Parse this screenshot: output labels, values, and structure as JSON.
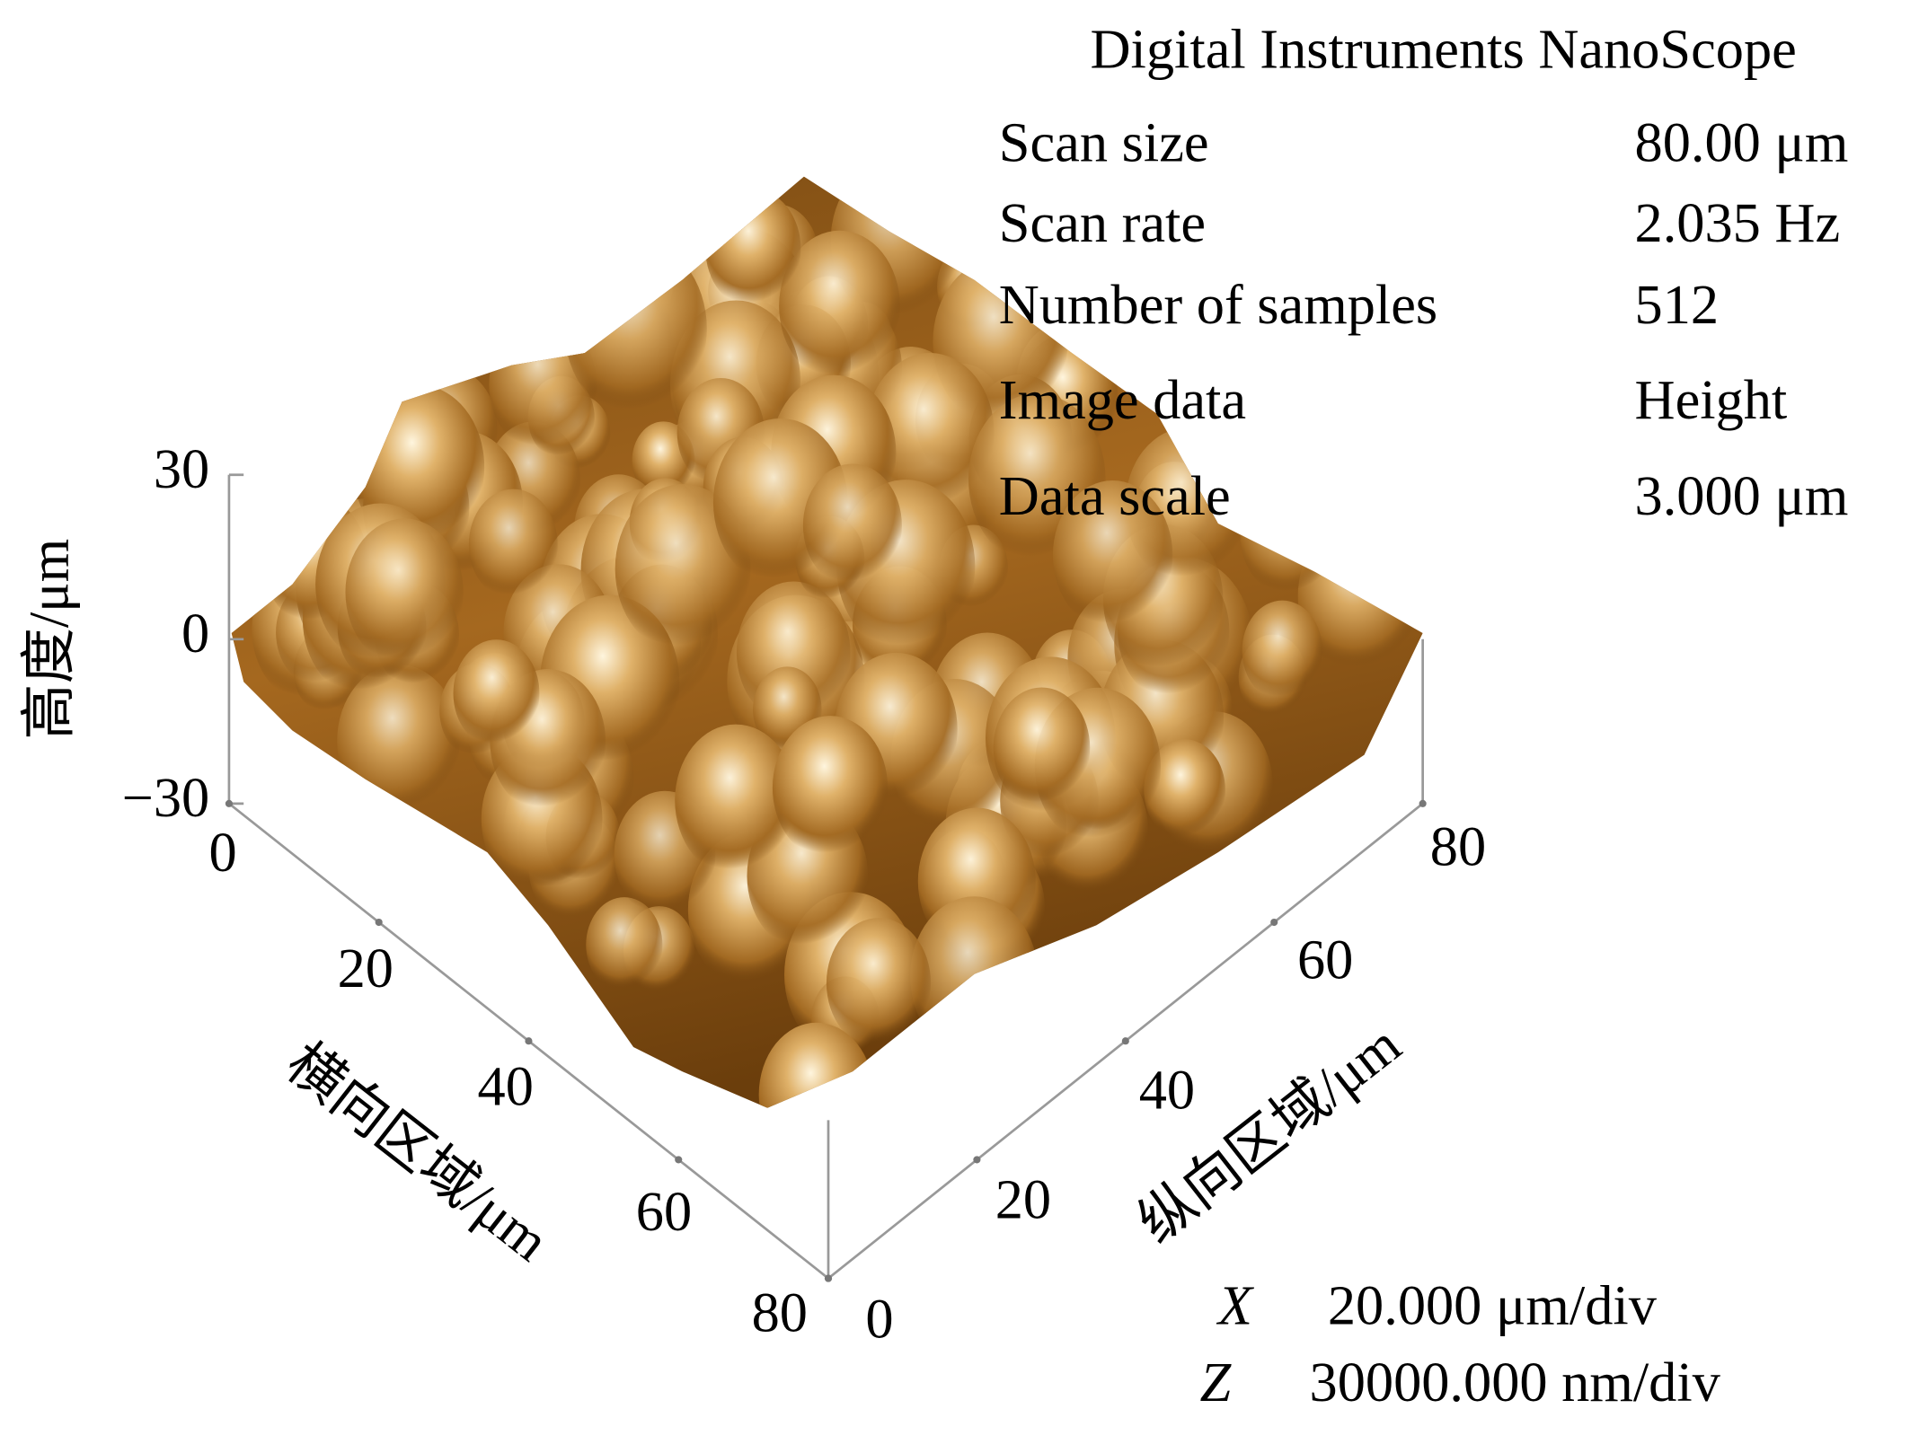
{
  "header": {
    "title": "Digital Instruments NanoScope"
  },
  "parameters": [
    {
      "label": "Scan size",
      "value": "80.00 μm"
    },
    {
      "label": "Scan rate",
      "value": "2.035 Hz"
    },
    {
      "label": "Number of samples",
      "value": "512"
    },
    {
      "label": "Image data",
      "value": "Height"
    },
    {
      "label": "Data scale",
      "value": "3.000 μm"
    }
  ],
  "axes": {
    "z": {
      "title": "高度/μm",
      "ticks": [
        "30",
        "0",
        "−30"
      ]
    },
    "x": {
      "title": "横向区域/μm",
      "ticks": [
        "0",
        "20",
        "40",
        "60",
        "80"
      ]
    },
    "y": {
      "title": "纵向区域/μm",
      "ticks": [
        "0",
        "20",
        "40",
        "60",
        "80"
      ]
    }
  },
  "scales": [
    {
      "axis": "X",
      "value": "20.000 μm/div"
    },
    {
      "axis": "Z",
      "value": "30000.000 nm/div"
    }
  ]
}
